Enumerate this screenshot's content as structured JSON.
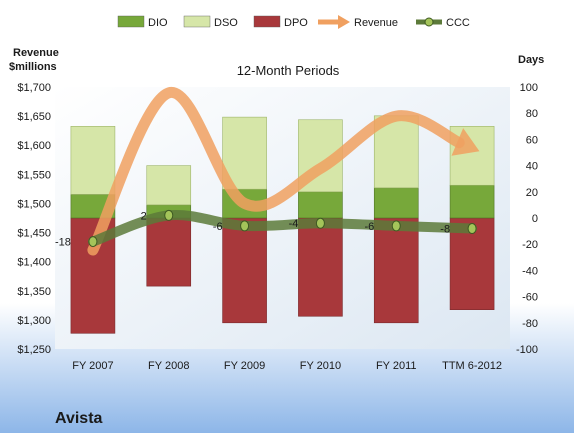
{
  "company": "Avista",
  "chart_data": {
    "type": "bar",
    "title": "12-Month Periods",
    "categories": [
      "FY 2007",
      "FY 2008",
      "FY 2009",
      "FY 2010",
      "FY 2011",
      "TTM 6-2012"
    ],
    "left_axis": {
      "label_line1": "Revenue",
      "label_line2": "$millions",
      "range": [
        1250,
        1700
      ],
      "ticks": [
        "$1,250",
        "$1,300",
        "$1,350",
        "$1,400",
        "$1,450",
        "$1,500",
        "$1,550",
        "$1,600",
        "$1,650",
        "$1,700"
      ]
    },
    "right_axis": {
      "label": "Days",
      "range": [
        -100,
        100
      ],
      "ticks": [
        "-100",
        "-80",
        "-60",
        "-40",
        "-20",
        "0",
        "20",
        "40",
        "60",
        "80",
        "100"
      ]
    },
    "legend": {
      "placement": "top",
      "items": [
        {
          "name": "DIO",
          "color": "#77A83A",
          "kind": "bar"
        },
        {
          "name": "DSO",
          "color": "#D6E6A8",
          "kind": "bar"
        },
        {
          "name": "DPO",
          "color": "#A8383B",
          "kind": "bar"
        },
        {
          "name": "Revenue",
          "color": "#F0A060",
          "kind": "arrow"
        },
        {
          "name": "CCC",
          "color": "#5C7A3A",
          "kind": "dotline"
        }
      ]
    },
    "series": [
      {
        "name": "DPO",
        "axis": "right",
        "values": [
          -88,
          -52,
          -80,
          -75,
          -80,
          -70
        ]
      },
      {
        "name": "DIO",
        "axis": "right",
        "values": [
          18,
          10,
          22,
          20,
          23,
          25
        ]
      },
      {
        "name": "DSO",
        "axis": "right",
        "values": [
          52,
          30,
          55,
          55,
          55,
          45
        ]
      },
      {
        "name": "Revenue",
        "axis": "left",
        "values": [
          1420,
          1690,
          1500,
          1560,
          1650,
          1595
        ]
      },
      {
        "name": "CCC",
        "axis": "right",
        "values": [
          -18,
          2,
          -6,
          -4,
          -6,
          -8
        ],
        "labels": [
          "-18",
          "2",
          "-6",
          "-4",
          "-6",
          "-8"
        ]
      }
    ],
    "grid": false
  }
}
